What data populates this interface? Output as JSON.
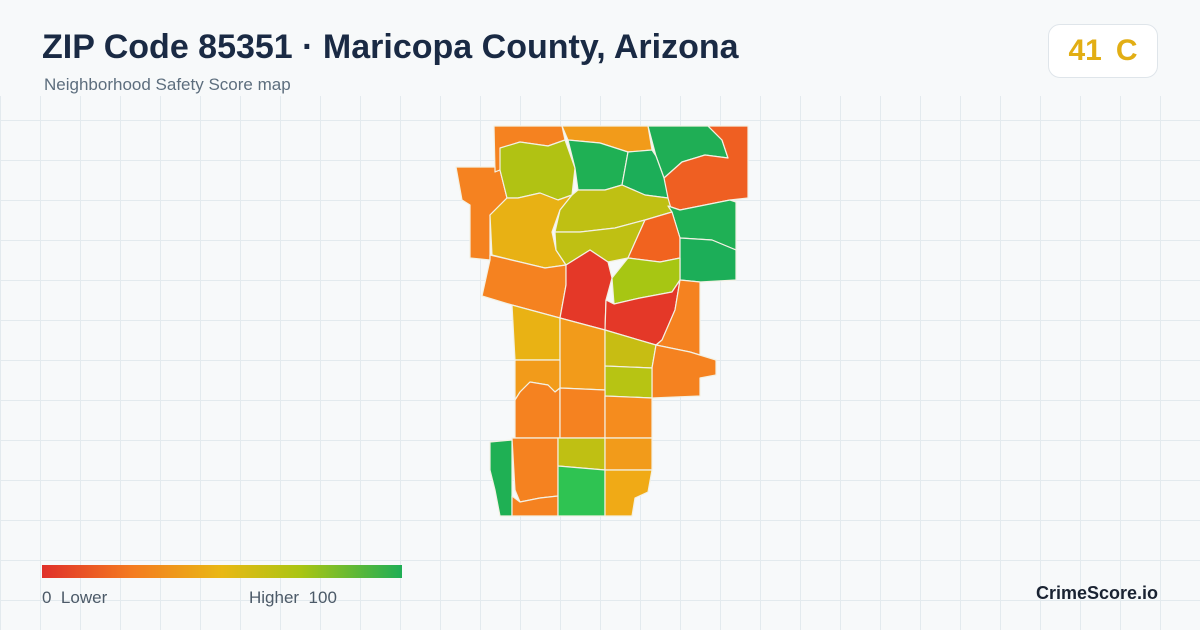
{
  "header": {
    "title": "ZIP Code 85351 · Maricopa County, Arizona",
    "subtitle": "Neighborhood Safety Score map"
  },
  "score_card": {
    "score": "41",
    "grade": "C",
    "color": "#e2ae14"
  },
  "legend": {
    "min": "0",
    "min_label": "Lower",
    "max_label": "Higher",
    "max": "100",
    "colors": [
      "#e0302a",
      "#f47b20",
      "#e9b814",
      "#a9c513",
      "#1fae55"
    ]
  },
  "brand": "CrimeScore.io"
}
